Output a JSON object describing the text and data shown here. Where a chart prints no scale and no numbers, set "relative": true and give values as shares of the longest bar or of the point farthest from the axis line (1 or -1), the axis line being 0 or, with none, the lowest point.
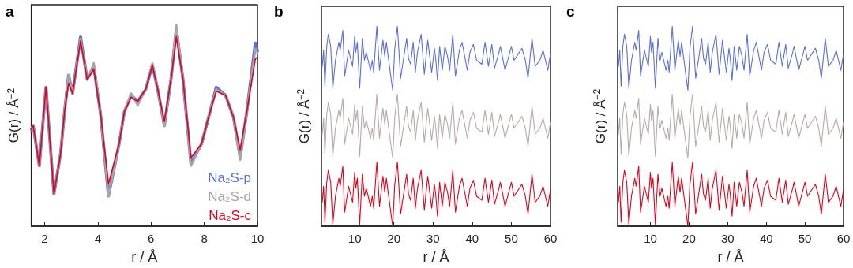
{
  "chart_data": [
    {
      "type": "line",
      "title": "a",
      "xlabel": "r / Å",
      "ylabel": "G(r) / Å$^{−2}$",
      "relative": true,
      "marker": "none",
      "line_style": "solid",
      "xlim": [
        1.5,
        10
      ],
      "xticks": [
        2,
        4,
        6,
        8,
        10
      ],
      "x": [
        1.5,
        1.57,
        1.8,
        2.05,
        2.35,
        2.6,
        2.75,
        2.9,
        3.05,
        3.35,
        3.6,
        3.85,
        4.1,
        4.4,
        4.8,
        5.0,
        5.25,
        5.5,
        5.8,
        6.05,
        6.25,
        6.5,
        6.75,
        6.95,
        7.2,
        7.5,
        7.9,
        8.2,
        8.45,
        8.8,
        9.1,
        9.35,
        9.6,
        9.92,
        10
      ],
      "series": [
        {
          "name": "Na₂S-p",
          "color": "#5b6fd6",
          "values": [
            0.48,
            0.5,
            0.3,
            0.69,
            0.16,
            0.36,
            0.57,
            0.75,
            0.66,
            0.94,
            0.73,
            0.79,
            0.56,
            0.15,
            0.41,
            0.57,
            0.65,
            0.62,
            0.68,
            0.8,
            0.68,
            0.5,
            0.73,
            0.98,
            0.73,
            0.31,
            0.41,
            0.56,
            0.69,
            0.65,
            0.54,
            0.34,
            0.57,
            0.91,
            0.87
          ]
        },
        {
          "name": "Na₂S-d",
          "color": "#aaa4a6",
          "values": [
            0.48,
            0.5,
            0.3,
            0.69,
            0.16,
            0.36,
            0.57,
            0.75,
            0.66,
            0.93,
            0.73,
            0.81,
            0.56,
            0.15,
            0.41,
            0.57,
            0.66,
            0.6,
            0.68,
            0.81,
            0.68,
            0.5,
            0.73,
            1.0,
            0.73,
            0.3,
            0.41,
            0.56,
            0.68,
            0.65,
            0.54,
            0.33,
            0.57,
            0.88,
            0.86
          ]
        },
        {
          "name": "Na₂S-c",
          "color": "#e3001b",
          "values": [
            0.48,
            0.5,
            0.3,
            0.69,
            0.16,
            0.36,
            0.57,
            0.71,
            0.66,
            0.92,
            0.73,
            0.78,
            0.56,
            0.21,
            0.41,
            0.57,
            0.64,
            0.62,
            0.68,
            0.8,
            0.68,
            0.52,
            0.73,
            0.94,
            0.73,
            0.34,
            0.41,
            0.56,
            0.67,
            0.65,
            0.54,
            0.38,
            0.57,
            0.83,
            0.84
          ]
        }
      ]
    },
    {
      "type": "line",
      "title": "b",
      "xlabel": "r / Å",
      "ylabel": "G(r) / Å$^{−2}$",
      "relative": true,
      "marker": "none",
      "line_style": "solid",
      "xlim": [
        1.5,
        60
      ],
      "xticks": [
        10,
        20,
        30,
        40,
        50,
        60
      ],
      "x": [
        1.71,
        2.05,
        2.39,
        2.85,
        3.26,
        3.86,
        4.4,
        5.08,
        5.95,
        6.29,
        6.96,
        7.43,
        8.44,
        9.45,
        9.99,
        10.26,
        10.66,
        11.27,
        11.94,
        12.48,
        12.95,
        14.03,
        14.5,
        14.84,
        15.65,
        16.32,
        17.2,
        17.67,
        18.07,
        19.01,
        19.69,
        20.23,
        20.9,
        21.71,
        23.26,
        23.73,
        24.27,
        24.94,
        25.48,
        26.02,
        26.97,
        27.78,
        28.65,
        29.66,
        30.34,
        30.67,
        31.14,
        31.68,
        32.35,
        33.03,
        33.7,
        34.24,
        35.05,
        35.72,
        36.73,
        37.41,
        38.76,
        39.43,
        40.31,
        41.12,
        42.47,
        43.28,
        44.15,
        45.03,
        45.7,
        46.85,
        47.19,
        48.4,
        50.02,
        50.69,
        52.04,
        52.71,
        53.58,
        54.26,
        55.27,
        56.08,
        57.29,
        58.1,
        59.31,
        59.98
      ],
      "series": [
        {
          "color": "#5b6fd6",
          "values": [
            0.8,
            0.88,
            0.7,
            0.9,
            0.96,
            0.9,
            0.69,
            0.83,
            0.92,
            0.88,
            0.98,
            0.75,
            0.88,
            0.8,
            0.95,
            0.87,
            0.92,
            0.69,
            0.94,
            0.83,
            0.87,
            0.78,
            0.83,
            0.77,
            1.0,
            0.78,
            0.93,
            0.85,
            0.92,
            0.78,
            0.68,
            0.89,
            1.0,
            0.74,
            0.94,
            0.84,
            0.81,
            0.92,
            0.77,
            0.87,
            0.96,
            0.76,
            0.93,
            0.77,
            0.89,
            0.84,
            0.73,
            0.9,
            0.78,
            0.9,
            0.85,
            0.78,
            0.96,
            0.75,
            0.88,
            0.92,
            0.78,
            0.87,
            0.91,
            0.83,
            0.81,
            0.92,
            0.8,
            0.91,
            0.79,
            0.87,
            0.9,
            0.78,
            0.9,
            0.83,
            0.87,
            0.89,
            0.83,
            0.74,
            0.94,
            0.8,
            0.83,
            0.88,
            0.78,
            0.86
          ]
        },
        {
          "color": "#b8a9a9",
          "values": [
            0.46,
            0.54,
            0.36,
            0.56,
            0.62,
            0.56,
            0.35,
            0.49,
            0.58,
            0.54,
            0.64,
            0.41,
            0.54,
            0.46,
            0.61,
            0.53,
            0.58,
            0.35,
            0.6,
            0.49,
            0.53,
            0.44,
            0.49,
            0.43,
            0.66,
            0.44,
            0.59,
            0.51,
            0.58,
            0.44,
            0.34,
            0.55,
            0.66,
            0.4,
            0.6,
            0.5,
            0.47,
            0.58,
            0.43,
            0.53,
            0.62,
            0.42,
            0.59,
            0.43,
            0.55,
            0.5,
            0.39,
            0.56,
            0.44,
            0.56,
            0.51,
            0.44,
            0.62,
            0.41,
            0.54,
            0.58,
            0.44,
            0.53,
            0.57,
            0.49,
            0.47,
            0.58,
            0.46,
            0.57,
            0.45,
            0.53,
            0.56,
            0.44,
            0.56,
            0.49,
            0.53,
            0.55,
            0.49,
            0.4,
            0.6,
            0.46,
            0.49,
            0.54,
            0.44,
            0.52
          ]
        },
        {
          "color": "#e3001b",
          "values": [
            0.12,
            0.2,
            0.02,
            0.22,
            0.28,
            0.22,
            0.01,
            0.15,
            0.24,
            0.2,
            0.3,
            0.07,
            0.2,
            0.12,
            0.27,
            0.19,
            0.24,
            0.01,
            0.26,
            0.15,
            0.19,
            0.1,
            0.15,
            0.09,
            0.32,
            0.1,
            0.25,
            0.17,
            0.24,
            0.1,
            0.0,
            0.21,
            0.32,
            0.06,
            0.26,
            0.16,
            0.13,
            0.24,
            0.09,
            0.19,
            0.28,
            0.08,
            0.25,
            0.09,
            0.21,
            0.16,
            0.05,
            0.22,
            0.1,
            0.22,
            0.17,
            0.1,
            0.28,
            0.07,
            0.2,
            0.24,
            0.1,
            0.19,
            0.23,
            0.15,
            0.13,
            0.24,
            0.12,
            0.23,
            0.11,
            0.19,
            0.22,
            0.1,
            0.22,
            0.15,
            0.19,
            0.21,
            0.15,
            0.06,
            0.26,
            0.12,
            0.15,
            0.2,
            0.1,
            0.18
          ]
        }
      ]
    },
    {
      "type": "line",
      "title": "c",
      "xlabel": "r / Å",
      "ylabel": "G(r) / Å$^{−2}$",
      "relative": true,
      "marker": "none",
      "line_style": "solid",
      "xlim": [
        1.5,
        60
      ],
      "xticks": [
        10,
        20,
        30,
        40,
        50,
        60
      ],
      "x": [
        1.71,
        2.05,
        2.39,
        2.85,
        3.26,
        3.86,
        4.4,
        5.08,
        5.95,
        6.29,
        6.96,
        7.43,
        8.44,
        9.45,
        9.99,
        10.26,
        10.66,
        11.27,
        11.94,
        12.48,
        12.95,
        14.03,
        14.5,
        14.84,
        15.65,
        16.32,
        17.2,
        17.67,
        18.07,
        19.01,
        19.69,
        20.23,
        20.9,
        21.71,
        23.26,
        23.73,
        24.27,
        24.94,
        25.48,
        26.02,
        26.97,
        27.78,
        28.65,
        29.66,
        30.34,
        30.67,
        31.14,
        31.68,
        32.35,
        33.03,
        33.7,
        34.24,
        35.05,
        35.72,
        36.73,
        37.41,
        38.76,
        39.43,
        40.31,
        41.12,
        42.47,
        43.28,
        44.15,
        45.03,
        45.7,
        46.85,
        47.19,
        48.4,
        50.02,
        50.69,
        52.04,
        52.71,
        53.58,
        54.26,
        55.27,
        56.08,
        57.29,
        58.1,
        59.31,
        59.98
      ],
      "series": [
        {
          "color": "#5b6fd6",
          "values": [
            0.8,
            0.88,
            0.7,
            0.9,
            0.96,
            0.9,
            0.69,
            0.83,
            0.92,
            0.88,
            0.98,
            0.75,
            0.88,
            0.8,
            0.95,
            0.87,
            0.92,
            0.69,
            0.94,
            0.83,
            0.87,
            0.78,
            0.83,
            0.77,
            1.0,
            0.78,
            0.93,
            0.85,
            0.92,
            0.78,
            0.68,
            0.89,
            1.0,
            0.74,
            0.94,
            0.84,
            0.81,
            0.92,
            0.77,
            0.87,
            0.96,
            0.76,
            0.93,
            0.77,
            0.89,
            0.84,
            0.73,
            0.9,
            0.78,
            0.9,
            0.85,
            0.78,
            0.96,
            0.75,
            0.88,
            0.92,
            0.78,
            0.87,
            0.91,
            0.83,
            0.81,
            0.92,
            0.8,
            0.91,
            0.79,
            0.87,
            0.9,
            0.78,
            0.9,
            0.83,
            0.87,
            0.89,
            0.83,
            0.74,
            0.94,
            0.8,
            0.83,
            0.88,
            0.78,
            0.86
          ]
        },
        {
          "color": "#b8a9a9",
          "values": [
            0.46,
            0.54,
            0.36,
            0.56,
            0.62,
            0.56,
            0.35,
            0.49,
            0.58,
            0.54,
            0.64,
            0.41,
            0.54,
            0.46,
            0.61,
            0.53,
            0.58,
            0.35,
            0.6,
            0.49,
            0.53,
            0.44,
            0.49,
            0.43,
            0.66,
            0.44,
            0.59,
            0.51,
            0.58,
            0.44,
            0.34,
            0.55,
            0.66,
            0.4,
            0.6,
            0.5,
            0.47,
            0.58,
            0.43,
            0.53,
            0.62,
            0.42,
            0.59,
            0.43,
            0.55,
            0.5,
            0.39,
            0.56,
            0.44,
            0.56,
            0.51,
            0.44,
            0.62,
            0.41,
            0.54,
            0.58,
            0.44,
            0.53,
            0.57,
            0.49,
            0.47,
            0.58,
            0.46,
            0.57,
            0.45,
            0.53,
            0.56,
            0.44,
            0.56,
            0.49,
            0.53,
            0.55,
            0.49,
            0.4,
            0.6,
            0.46,
            0.49,
            0.54,
            0.44,
            0.52
          ]
        },
        {
          "color": "#e3001b",
          "values": [
            0.12,
            0.2,
            0.02,
            0.22,
            0.28,
            0.22,
            0.01,
            0.15,
            0.24,
            0.2,
            0.3,
            0.07,
            0.2,
            0.12,
            0.27,
            0.19,
            0.24,
            0.01,
            0.26,
            0.15,
            0.19,
            0.1,
            0.15,
            0.09,
            0.32,
            0.1,
            0.25,
            0.17,
            0.24,
            0.1,
            0.0,
            0.21,
            0.32,
            0.06,
            0.26,
            0.16,
            0.13,
            0.24,
            0.09,
            0.19,
            0.28,
            0.08,
            0.25,
            0.09,
            0.21,
            0.16,
            0.05,
            0.22,
            0.1,
            0.22,
            0.17,
            0.1,
            0.28,
            0.07,
            0.2,
            0.24,
            0.1,
            0.19,
            0.23,
            0.15,
            0.13,
            0.24,
            0.12,
            0.23,
            0.11,
            0.19,
            0.22,
            0.1,
            0.22,
            0.15,
            0.19,
            0.21,
            0.15,
            0.06,
            0.26,
            0.12,
            0.15,
            0.2,
            0.1,
            0.18
          ]
        }
      ]
    }
  ]
}
